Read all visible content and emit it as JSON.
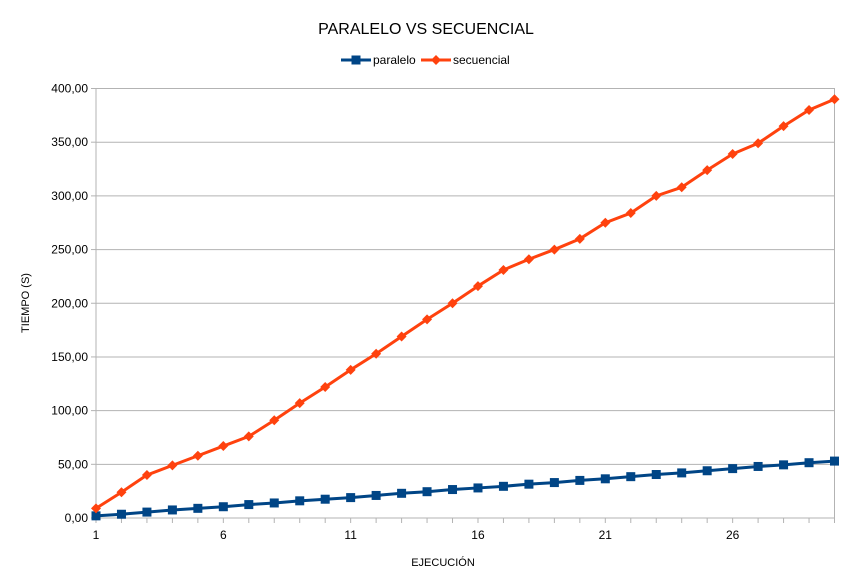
{
  "chart_data": {
    "type": "line",
    "title": "PARALELO VS SECUENCIAL",
    "xlabel": "EJECUCIÓN",
    "ylabel": "TIEMPO (S)",
    "x": [
      1,
      2,
      3,
      4,
      5,
      6,
      7,
      8,
      9,
      10,
      11,
      12,
      13,
      14,
      15,
      16,
      17,
      18,
      19,
      20,
      21,
      22,
      23,
      24,
      25,
      26,
      27,
      28,
      29,
      30
    ],
    "x_tick_labels": [
      "1",
      "6",
      "11",
      "16",
      "21",
      "26"
    ],
    "x_tick_values": [
      1,
      6,
      11,
      16,
      21,
      26
    ],
    "xlim": [
      1,
      30
    ],
    "ylim": [
      0,
      400
    ],
    "y_ticks": [
      0,
      50,
      100,
      150,
      200,
      250,
      300,
      350,
      400
    ],
    "y_tick_labels": [
      "0,00",
      "50,00",
      "100,00",
      "150,00",
      "200,00",
      "250,00",
      "300,00",
      "350,00",
      "400,00"
    ],
    "grid": "horizontal",
    "legend_position": "top",
    "series": [
      {
        "name": "paralelo",
        "color": "#004586",
        "marker": "square",
        "values": [
          2,
          3.5,
          5.5,
          7.5,
          9,
          10.5,
          12.5,
          14,
          16,
          17.5,
          19,
          21,
          23,
          24.5,
          26.5,
          28,
          29.5,
          31.5,
          33,
          35,
          36.5,
          38.5,
          40.5,
          42,
          44,
          46,
          48,
          49.5,
          51.5,
          53
        ]
      },
      {
        "name": "secuencial",
        "color": "#ff420e",
        "marker": "diamond",
        "values": [
          9,
          24,
          40,
          49,
          58,
          67,
          76,
          91,
          107,
          122,
          138,
          153,
          169,
          185,
          200,
          216,
          231,
          241,
          250,
          260,
          275,
          284,
          300,
          308,
          324,
          339,
          349,
          365,
          380,
          390
        ]
      }
    ]
  }
}
